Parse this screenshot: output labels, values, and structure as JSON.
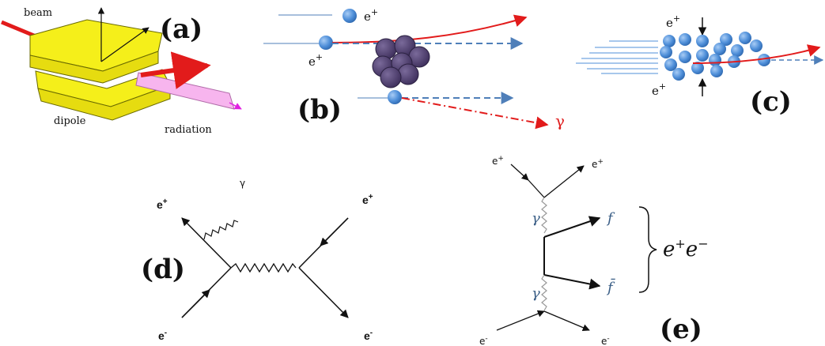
{
  "panels": {
    "a": {
      "label": "(a)",
      "beam_label": "beam",
      "dipole_label": "dipole",
      "radiation_label": "radiation",
      "colors": {
        "magnet": "#f5ef1a",
        "radiation": "#f7b5ee",
        "beam": "#e21b1b"
      }
    },
    "b": {
      "label": "(b)",
      "positron_label_top": "e",
      "positron_sup_top": "+",
      "positron_label_mid": "e",
      "positron_sup_mid": "+",
      "photon_label": "γ",
      "colors": {
        "nucleus": "#4a3a6a",
        "particle": "#4f8fd9",
        "trajectory": "#e21b1b",
        "dashed": "#4f7fb9"
      }
    },
    "c": {
      "label": "(c)",
      "positron_label_top": "e",
      "positron_sup_top": "+",
      "positron_label_bottom": "e",
      "positron_sup_bottom": "+",
      "colors": {
        "particle": "#4f8fd9",
        "trajectory": "#e21b1b"
      }
    },
    "d": {
      "label": "(d)",
      "top_left": "e",
      "top_left_sup": "+",
      "photon": "γ",
      "top_right": "e",
      "top_right_sup": "+",
      "bottom_left": "e",
      "bottom_left_sup": "-",
      "bottom_right": "e",
      "bottom_right_sup": "-"
    },
    "e": {
      "label": "(e)",
      "top_left": "e",
      "top_left_sup": "+",
      "top_right": "e",
      "top_right_sup": "+",
      "gamma_top": "γ",
      "gamma_bottom": "γ",
      "fermion": "f",
      "antifermion": "f̄",
      "pair_label": "e",
      "pair_sup_plus": "+",
      "pair_e2": "e",
      "pair_sup_minus": "−",
      "bottom_left": "e",
      "bottom_left_sup": "-",
      "bottom_right": "e",
      "bottom_right_sup": "-"
    }
  }
}
